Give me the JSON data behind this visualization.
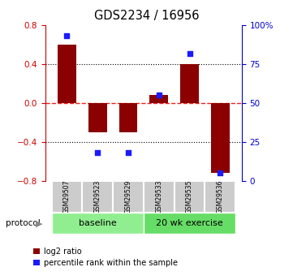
{
  "title": "GDS2234 / 16956",
  "samples": [
    "GSM29507",
    "GSM29523",
    "GSM29529",
    "GSM29533",
    "GSM29535",
    "GSM29536"
  ],
  "log2_ratio": [
    0.6,
    -0.3,
    -0.3,
    0.08,
    0.4,
    -0.72
  ],
  "percentile_rank": [
    93,
    18,
    18,
    55,
    82,
    5
  ],
  "bar_color": "#8B0000",
  "dot_color": "#1A1AFF",
  "ylim": [
    -0.8,
    0.8
  ],
  "y2lim": [
    0,
    100
  ],
  "yticks_left": [
    -0.8,
    -0.4,
    0.0,
    0.4,
    0.8
  ],
  "yticks_right": [
    0,
    25,
    50,
    75,
    100
  ],
  "ytick_labels_right": [
    "0",
    "25",
    "50",
    "75",
    "100%"
  ],
  "dotted_lines": [
    0.4,
    -0.4
  ],
  "zero_line_color": "#EE2222",
  "baseline_color": "#90EE90",
  "exercise_color": "#66DD66",
  "protocol_label": "protocol",
  "baseline_label": "baseline",
  "exercise_label": "20 wk exercise",
  "legend_ratio_label": "log2 ratio",
  "legend_pct_label": "percentile rank within the sample",
  "bar_width": 0.6,
  "n_baseline": 3,
  "n_exercise": 3,
  "left_tick_color": "#CC0000",
  "right_tick_color": "#0000CC",
  "box_color": "#CCCCCC"
}
